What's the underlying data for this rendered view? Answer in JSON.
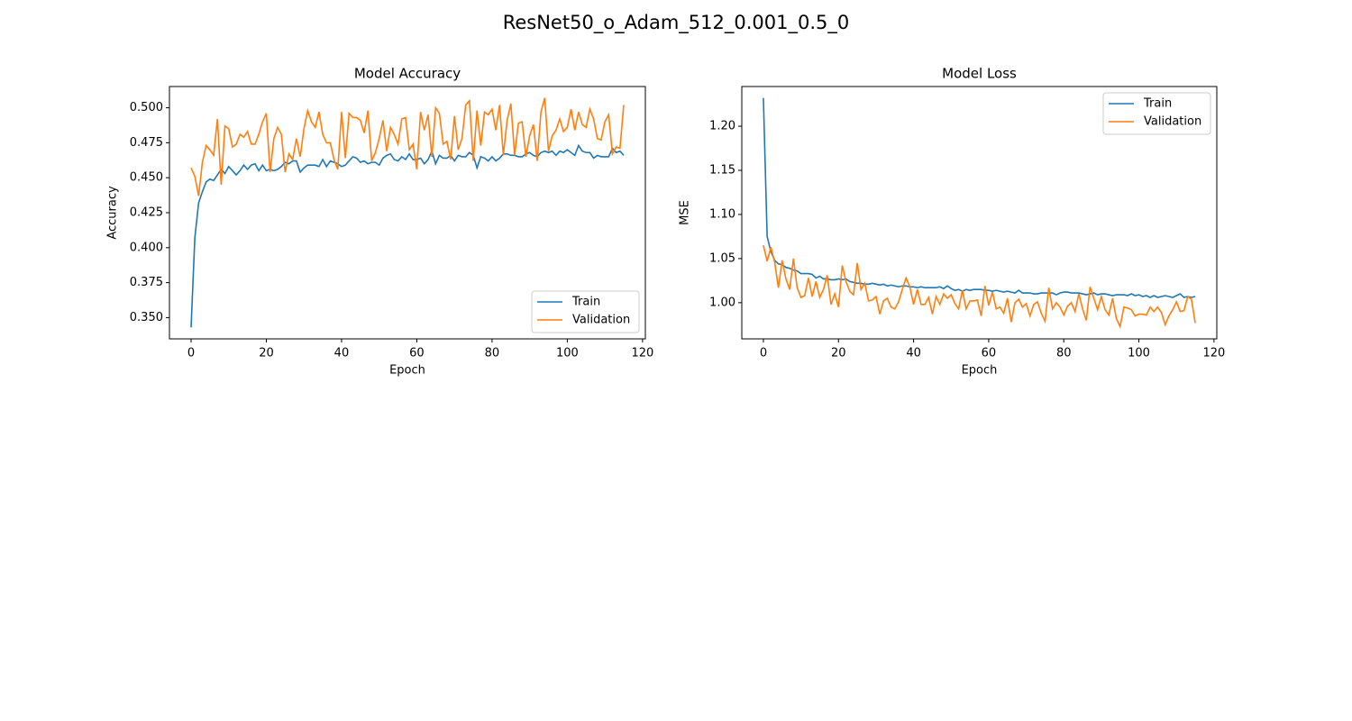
{
  "title": "ResNet50_o_Adam_512_0.001_0.5_0",
  "chart_data": [
    {
      "type": "line",
      "title": "Model Accuracy",
      "xlabel": "Epoch",
      "ylabel": "Accuracy",
      "x": [
        0,
        1,
        2,
        3,
        4,
        5,
        6,
        7,
        8,
        9,
        10,
        11,
        12,
        13,
        14,
        15,
        16,
        17,
        18,
        19,
        20,
        21,
        22,
        23,
        24,
        25,
        26,
        27,
        28,
        29,
        30,
        31,
        32,
        33,
        34,
        35,
        36,
        37,
        38,
        39,
        40,
        41,
        42,
        43,
        44,
        45,
        46,
        47,
        48,
        49,
        50,
        51,
        52,
        53,
        54,
        55,
        56,
        57,
        58,
        59,
        60,
        61,
        62,
        63,
        64,
        65,
        66,
        67,
        68,
        69,
        70,
        71,
        72,
        73,
        74,
        75,
        76,
        77,
        78,
        79,
        80,
        81,
        82,
        83,
        84,
        85,
        86,
        87,
        88,
        89,
        90,
        91,
        92,
        93,
        94,
        95,
        96,
        97,
        98,
        99,
        100,
        101,
        102,
        103,
        104,
        105,
        106,
        107,
        108,
        109,
        110,
        111,
        112,
        113,
        114,
        115
      ],
      "series": [
        {
          "name": "Train",
          "color": "#1f77b4",
          "values": [
            0.343,
            0.407,
            0.432,
            0.44,
            0.447,
            0.449,
            0.448,
            0.452,
            0.456,
            0.453,
            0.458,
            0.455,
            0.452,
            0.455,
            0.459,
            0.456,
            0.459,
            0.46,
            0.455,
            0.459,
            0.455,
            0.456,
            0.455,
            0.456,
            0.458,
            0.461,
            0.46,
            0.462,
            0.462,
            0.454,
            0.457,
            0.459,
            0.459,
            0.459,
            0.458,
            0.463,
            0.458,
            0.462,
            0.461,
            0.46,
            0.458,
            0.459,
            0.462,
            0.465,
            0.464,
            0.461,
            0.462,
            0.46,
            0.461,
            0.461,
            0.459,
            0.464,
            0.466,
            0.467,
            0.463,
            0.462,
            0.465,
            0.463,
            0.467,
            0.463,
            0.463,
            0.464,
            0.46,
            0.463,
            0.469,
            0.46,
            0.466,
            0.464,
            0.464,
            0.466,
            0.462,
            0.466,
            0.465,
            0.465,
            0.468,
            0.466,
            0.457,
            0.465,
            0.464,
            0.462,
            0.465,
            0.462,
            0.464,
            0.467,
            0.467,
            0.466,
            0.466,
            0.465,
            0.465,
            0.467,
            0.468,
            0.466,
            0.465,
            0.468,
            0.469,
            0.468,
            0.469,
            0.466,
            0.469,
            0.468,
            0.47,
            0.468,
            0.466,
            0.473,
            0.469,
            0.468,
            0.468,
            0.464,
            0.466,
            0.465,
            0.465,
            0.465,
            0.471,
            0.468,
            0.469,
            0.466
          ]
        },
        {
          "name": "Validation",
          "color": "#ff7f0e",
          "values": [
            0.457,
            0.451,
            0.437,
            0.461,
            0.473,
            0.47,
            0.466,
            0.492,
            0.445,
            0.487,
            0.485,
            0.472,
            0.474,
            0.481,
            0.479,
            0.483,
            0.474,
            0.474,
            0.481,
            0.49,
            0.496,
            0.454,
            0.478,
            0.486,
            0.481,
            0.454,
            0.467,
            0.463,
            0.478,
            0.465,
            0.485,
            0.498,
            0.49,
            0.486,
            0.497,
            0.481,
            0.475,
            0.475,
            0.463,
            0.456,
            0.497,
            0.464,
            0.496,
            0.493,
            0.493,
            0.491,
            0.482,
            0.498,
            0.462,
            0.468,
            0.478,
            0.491,
            0.469,
            0.486,
            0.481,
            0.474,
            0.492,
            0.493,
            0.47,
            0.474,
            0.456,
            0.497,
            0.484,
            0.495,
            0.465,
            0.5,
            0.496,
            0.474,
            0.476,
            0.463,
            0.494,
            0.47,
            0.478,
            0.502,
            0.505,
            0.462,
            0.498,
            0.473,
            0.497,
            0.495,
            0.499,
            0.484,
            0.502,
            0.466,
            0.491,
            0.503,
            0.466,
            0.489,
            0.49,
            0.465,
            0.48,
            0.488,
            0.462,
            0.497,
            0.507,
            0.469,
            0.48,
            0.484,
            0.492,
            0.483,
            0.486,
            0.499,
            0.484,
            0.497,
            0.488,
            0.486,
            0.499,
            0.492,
            0.478,
            0.477,
            0.49,
            0.495,
            0.467,
            0.472,
            0.471,
            0.502
          ]
        }
      ],
      "xlim": [
        -5.75,
        120.75
      ],
      "xticks": [
        0,
        20,
        40,
        60,
        80,
        100,
        120
      ],
      "ylim": [
        0.3348,
        0.5152
      ],
      "yticks": [
        {
          "value": 0.35,
          "label": "0.350"
        },
        {
          "value": 0.375,
          "label": "0.375"
        },
        {
          "value": 0.4,
          "label": "0.400"
        },
        {
          "value": 0.425,
          "label": "0.425"
        },
        {
          "value": 0.45,
          "label": "0.450"
        },
        {
          "value": 0.475,
          "label": "0.475"
        },
        {
          "value": 0.5,
          "label": "0.500"
        }
      ],
      "legend": "lower right"
    },
    {
      "type": "line",
      "title": "Model Loss",
      "xlabel": "Epoch",
      "ylabel": "MSE",
      "x": [
        0,
        1,
        2,
        3,
        4,
        5,
        6,
        7,
        8,
        9,
        10,
        11,
        12,
        13,
        14,
        15,
        16,
        17,
        18,
        19,
        20,
        21,
        22,
        23,
        24,
        25,
        26,
        27,
        28,
        29,
        30,
        31,
        32,
        33,
        34,
        35,
        36,
        37,
        38,
        39,
        40,
        41,
        42,
        43,
        44,
        45,
        46,
        47,
        48,
        49,
        50,
        51,
        52,
        53,
        54,
        55,
        56,
        57,
        58,
        59,
        60,
        61,
        62,
        63,
        64,
        65,
        66,
        67,
        68,
        69,
        70,
        71,
        72,
        73,
        74,
        75,
        76,
        77,
        78,
        79,
        80,
        81,
        82,
        83,
        84,
        85,
        86,
        87,
        88,
        89,
        90,
        91,
        92,
        93,
        94,
        95,
        96,
        97,
        98,
        99,
        100,
        101,
        102,
        103,
        104,
        105,
        106,
        107,
        108,
        109,
        110,
        111,
        112,
        113,
        114,
        115
      ],
      "series": [
        {
          "name": "Train",
          "color": "#1f77b4",
          "values": [
            1.232,
            1.075,
            1.058,
            1.048,
            1.044,
            1.043,
            1.04,
            1.039,
            1.037,
            1.036,
            1.033,
            1.033,
            1.033,
            1.032,
            1.028,
            1.03,
            1.027,
            1.027,
            1.026,
            1.026,
            1.027,
            1.026,
            1.027,
            1.024,
            1.023,
            1.022,
            1.022,
            1.021,
            1.021,
            1.022,
            1.021,
            1.02,
            1.021,
            1.019,
            1.02,
            1.019,
            1.018,
            1.019,
            1.019,
            1.018,
            1.018,
            1.017,
            1.018,
            1.017,
            1.017,
            1.017,
            1.017,
            1.018,
            1.016,
            1.019,
            1.016,
            1.014,
            1.015,
            1.013,
            1.015,
            1.014,
            1.015,
            1.015,
            1.015,
            1.014,
            1.014,
            1.013,
            1.014,
            1.013,
            1.012,
            1.013,
            1.012,
            1.011,
            1.014,
            1.011,
            1.011,
            1.011,
            1.01,
            1.01,
            1.011,
            1.011,
            1.011,
            1.011,
            1.009,
            1.011,
            1.012,
            1.012,
            1.011,
            1.011,
            1.011,
            1.01,
            1.009,
            1.01,
            1.011,
            1.009,
            1.01,
            1.01,
            1.009,
            1.008,
            1.009,
            1.009,
            1.009,
            1.008,
            1.01,
            1.008,
            1.009,
            1.007,
            1.008,
            1.006,
            1.008,
            1.006,
            1.007,
            1.008,
            1.007,
            1.006,
            1.008,
            1.01,
            1.006,
            1.007,
            1.006,
            1.007
          ]
        },
        {
          "name": "Validation",
          "color": "#ff7f0e",
          "values": [
            1.065,
            1.047,
            1.063,
            1.046,
            1.017,
            1.048,
            1.027,
            1.015,
            1.05,
            1.017,
            1.006,
            1.008,
            1.028,
            1.007,
            1.024,
            1.006,
            1.015,
            1.031,
            0.998,
            1.01,
            0.995,
            1.042,
            1.024,
            1.013,
            1.009,
            1.045,
            1.015,
            1.022,
            1.002,
            1.003,
            1.007,
            0.987,
            1.002,
            1.005,
            0.995,
            0.993,
            1.001,
            1.015,
            1.028,
            1.018,
            0.998,
            1.015,
            0.998,
            0.998,
            1.006,
            0.987,
            1.007,
            0.998,
            1.01,
            1.005,
            1.009,
            0.999,
            0.993,
            1.014,
            0.993,
            1.002,
            1.002,
            1.003,
            0.985,
            1.019,
            0.997,
            1.012,
            0.993,
            0.995,
            0.988,
            1.005,
            0.978,
            1.0,
            1.004,
            0.995,
            0.999,
            0.985,
            0.998,
            1.001,
            0.988,
            0.979,
            1.017,
            0.993,
            1.0,
            0.995,
            0.986,
            0.996,
            1.0,
            0.99,
            1.01,
            0.993,
            0.98,
            1.018,
            1.005,
            0.992,
            1.007,
            0.992,
            0.986,
            1.005,
            0.982,
            0.973,
            0.995,
            0.994,
            0.992,
            0.985,
            0.987,
            0.987,
            0.986,
            0.995,
            0.99,
            0.995,
            0.989,
            0.975,
            0.985,
            0.992,
            1.001,
            0.99,
            0.991,
            1.007,
            1.004,
            0.977
          ]
        }
      ],
      "xlim": [
        -5.75,
        120.75
      ],
      "xticks": [
        0,
        20,
        40,
        60,
        80,
        100,
        120
      ],
      "ylim": [
        0.959,
        1.245
      ],
      "yticks": [
        {
          "value": 1.0,
          "label": "1.00"
        },
        {
          "value": 1.05,
          "label": "1.05"
        },
        {
          "value": 1.1,
          "label": "1.10"
        },
        {
          "value": 1.15,
          "label": "1.15"
        },
        {
          "value": 1.2,
          "label": "1.20"
        }
      ],
      "legend": "upper right"
    }
  ]
}
